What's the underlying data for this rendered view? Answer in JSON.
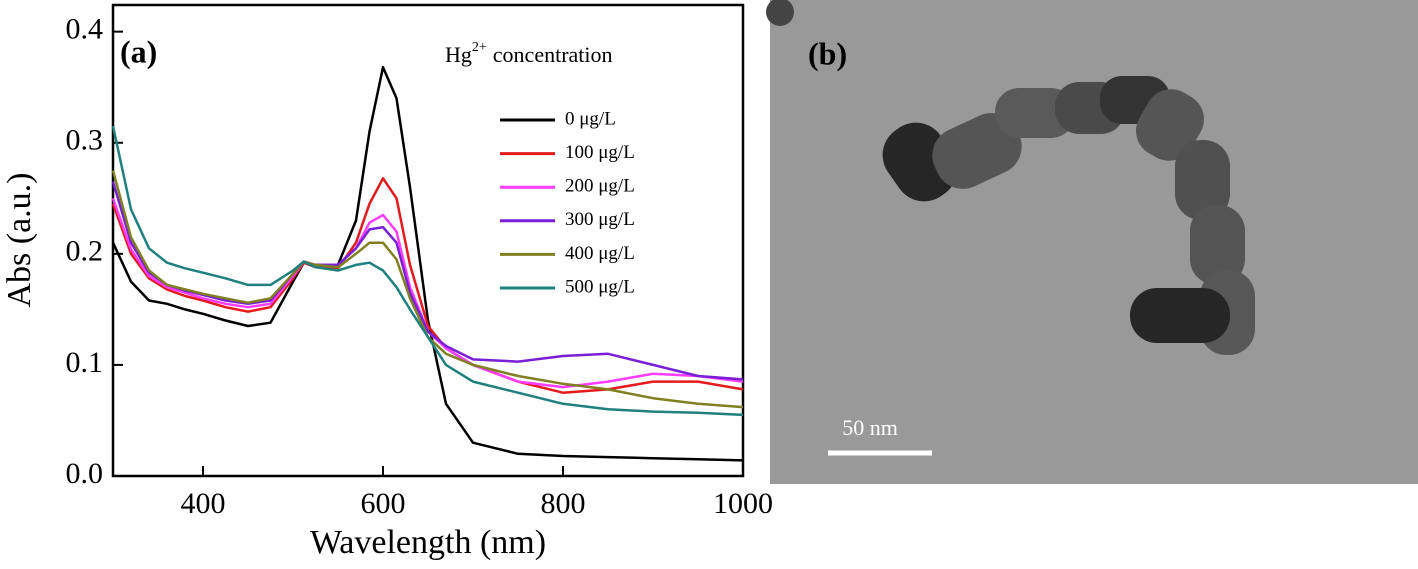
{
  "chart_data": {
    "type": "line",
    "panel_label": "(a)",
    "x_label": "Wavelength (nm)",
    "y_label": "Abs (a.u.)",
    "legend_title": [
      "Hg",
      "2+",
      "concentration"
    ],
    "legend_position": "upper right",
    "xlim": [
      300,
      1000
    ],
    "xticks": [
      400,
      600,
      800,
      1000
    ],
    "ylim": [
      0,
      0.424
    ],
    "yticks": [
      {
        "value": 0,
        "label": "0.0"
      },
      0.1,
      0.2,
      0.3,
      0.4
    ],
    "x": [
      300,
      320,
      340,
      360,
      380,
      400,
      425,
      450,
      475,
      500,
      512,
      525,
      550,
      570,
      585,
      600,
      615,
      630,
      650,
      670,
      700,
      750,
      800,
      850,
      900,
      950,
      1000
    ],
    "series": [
      {
        "name": "0 μg/L",
        "color": "#000000",
        "values": [
          0.21,
          0.175,
          0.158,
          0.155,
          0.15,
          0.146,
          0.14,
          0.135,
          0.138,
          0.175,
          0.192,
          0.19,
          0.19,
          0.23,
          0.31,
          0.368,
          0.34,
          0.26,
          0.14,
          0.065,
          0.03,
          0.02,
          0.018,
          0.017,
          0.016,
          0.015,
          0.014
        ]
      },
      {
        "name": "100 μg/L",
        "color": "#e41a1c",
        "values": [
          0.245,
          0.2,
          0.178,
          0.168,
          0.162,
          0.158,
          0.152,
          0.148,
          0.152,
          0.178,
          0.192,
          0.188,
          0.187,
          0.21,
          0.245,
          0.268,
          0.25,
          0.19,
          0.135,
          0.115,
          0.1,
          0.085,
          0.075,
          0.078,
          0.085,
          0.085,
          0.078
        ]
      },
      {
        "name": "200 μg/L",
        "color": "#ff3cff",
        "values": [
          0.25,
          0.204,
          0.18,
          0.17,
          0.165,
          0.16,
          0.155,
          0.152,
          0.155,
          0.18,
          0.193,
          0.19,
          0.19,
          0.205,
          0.228,
          0.235,
          0.22,
          0.17,
          0.13,
          0.115,
          0.1,
          0.085,
          0.08,
          0.085,
          0.092,
          0.09,
          0.085
        ]
      },
      {
        "name": "300 μg/L",
        "color": "#7a1fd6",
        "values": [
          0.265,
          0.21,
          0.183,
          0.172,
          0.167,
          0.163,
          0.158,
          0.155,
          0.158,
          0.182,
          0.193,
          0.19,
          0.19,
          0.205,
          0.222,
          0.224,
          0.21,
          0.165,
          0.13,
          0.117,
          0.105,
          0.103,
          0.108,
          0.11,
          0.1,
          0.09,
          0.087
        ]
      },
      {
        "name": "400 μg/L",
        "color": "#808020",
        "values": [
          0.275,
          0.215,
          0.185,
          0.172,
          0.168,
          0.164,
          0.16,
          0.156,
          0.16,
          0.182,
          0.193,
          0.19,
          0.188,
          0.2,
          0.21,
          0.21,
          0.195,
          0.16,
          0.125,
          0.11,
          0.1,
          0.09,
          0.083,
          0.078,
          0.07,
          0.065,
          0.062
        ]
      },
      {
        "name": "500 μg/L",
        "color": "#1f8080",
        "values": [
          0.315,
          0.24,
          0.205,
          0.192,
          0.187,
          0.183,
          0.178,
          0.172,
          0.172,
          0.185,
          0.193,
          0.188,
          0.185,
          0.19,
          0.192,
          0.185,
          0.17,
          0.15,
          0.125,
          0.1,
          0.085,
          0.075,
          0.065,
          0.06,
          0.058,
          0.057,
          0.055
        ]
      }
    ]
  },
  "image_panel": {
    "label": "(b)",
    "scale_bar": "50 nm"
  }
}
